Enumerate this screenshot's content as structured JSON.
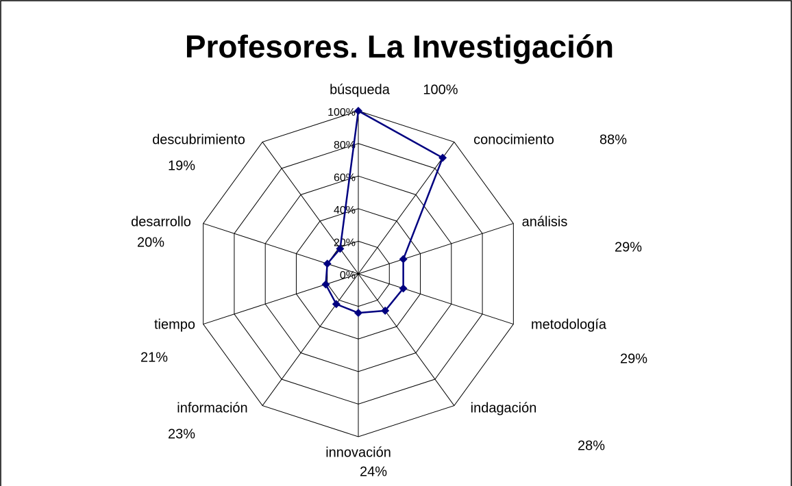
{
  "chart_data": {
    "type": "radar",
    "title": "Profesores. La Investigación",
    "categories": [
      "búsqueda",
      "conocimiento",
      "análisis",
      "metodología",
      "indagación",
      "innovación",
      "información",
      "tiempo",
      "desarrollo",
      "descubrimiento"
    ],
    "values": [
      100,
      88,
      29,
      29,
      28,
      24,
      23,
      21,
      20,
      19
    ],
    "value_labels": [
      "100%",
      "88%",
      "29%",
      "29%",
      "28%",
      "24%",
      "23%",
      "21%",
      "20%",
      "19%"
    ],
    "color": "#000080",
    "ylim": [
      0,
      100
    ],
    "yticks": [
      {
        "value": 0,
        "label": "0%"
      },
      {
        "value": 20,
        "label": "20%"
      },
      {
        "value": 40,
        "label": "40%"
      },
      {
        "value": 60,
        "label": "60%"
      },
      {
        "value": 80,
        "label": "80%"
      },
      {
        "value": 100,
        "label": "100%"
      }
    ],
    "grid": true
  }
}
